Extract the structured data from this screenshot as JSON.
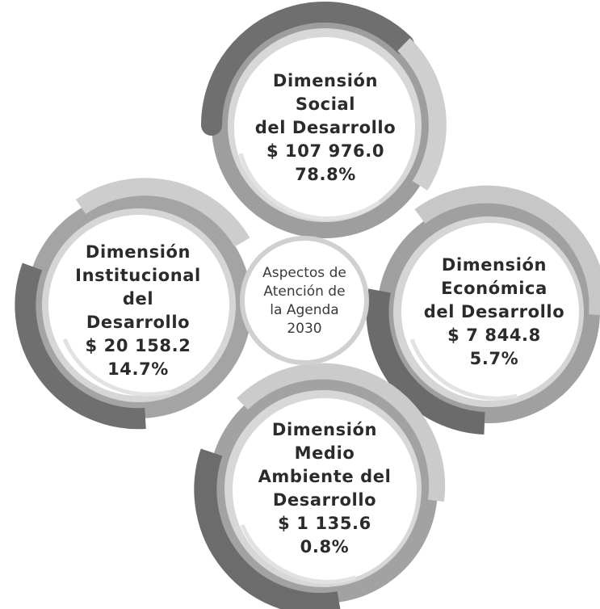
{
  "center": {
    "lines": [
      "Aspectos de",
      "Atención de",
      "la Agenda",
      "2030"
    ]
  },
  "dimensions": [
    {
      "id": "social",
      "name_lines": [
        "Dimensión",
        "Social",
        "del Desarrollo"
      ],
      "amount": "$ 107 976.0",
      "percent": "78.8%"
    },
    {
      "id": "institucional",
      "name_lines": [
        "Dimensión",
        "Institucional",
        "del",
        "Desarrollo"
      ],
      "amount": "$ 20 158.2",
      "percent": "14.7%"
    },
    {
      "id": "economica",
      "name_lines": [
        "Dimensión",
        "Económica",
        "del Desarrollo"
      ],
      "amount": "$ 7 844.8",
      "percent": "5.7%"
    },
    {
      "id": "medio-ambiente",
      "name_lines": [
        "Dimensión",
        "Medio",
        "Ambiente del",
        "Desarrollo"
      ],
      "amount": "$ 1 135.6",
      "percent": "0.8%"
    }
  ],
  "colors": {
    "ring_dark": "#6e6e6e",
    "ring_mid": "#9a9a9a",
    "ring_light": "#c9c9c9",
    "circle_fill": "#ffffff",
    "text": "#2b2b2b"
  }
}
